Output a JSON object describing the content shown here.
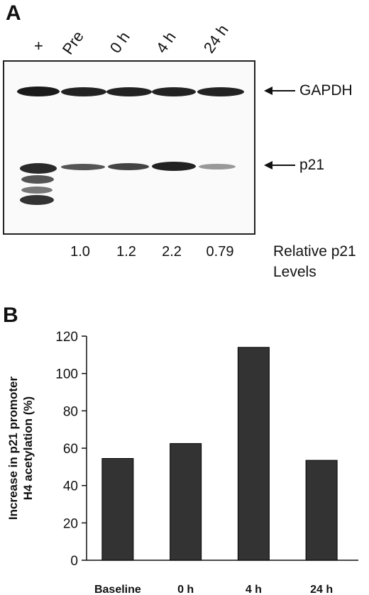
{
  "panel_a": {
    "letter": "A",
    "lanes": [
      "+",
      "Pre",
      "0 h",
      "4 h",
      "24 h"
    ],
    "markers": {
      "gapdh": "GAPDH",
      "p21": "p21"
    },
    "relative_levels": [
      "1.0",
      "1.2",
      "2.2",
      "0.79"
    ],
    "relative_label_line1": "Relative p21",
    "relative_label_line2": "Levels"
  },
  "panel_b": {
    "letter": "B"
  },
  "chart_data": {
    "type": "bar",
    "categories": [
      "Baseline",
      "0 h",
      "4 h",
      "24 h"
    ],
    "values": [
      54.5,
      62.5,
      114,
      53.5
    ],
    "ylabel_line1": "Increase in p21 promoter",
    "ylabel_line2": "H4 acetylation (%)",
    "xlabel": "",
    "ylim": [
      0,
      120
    ],
    "yticks": [
      0,
      20,
      40,
      60,
      80,
      100,
      120
    ],
    "bar_color": "#333333",
    "grid": false
  }
}
